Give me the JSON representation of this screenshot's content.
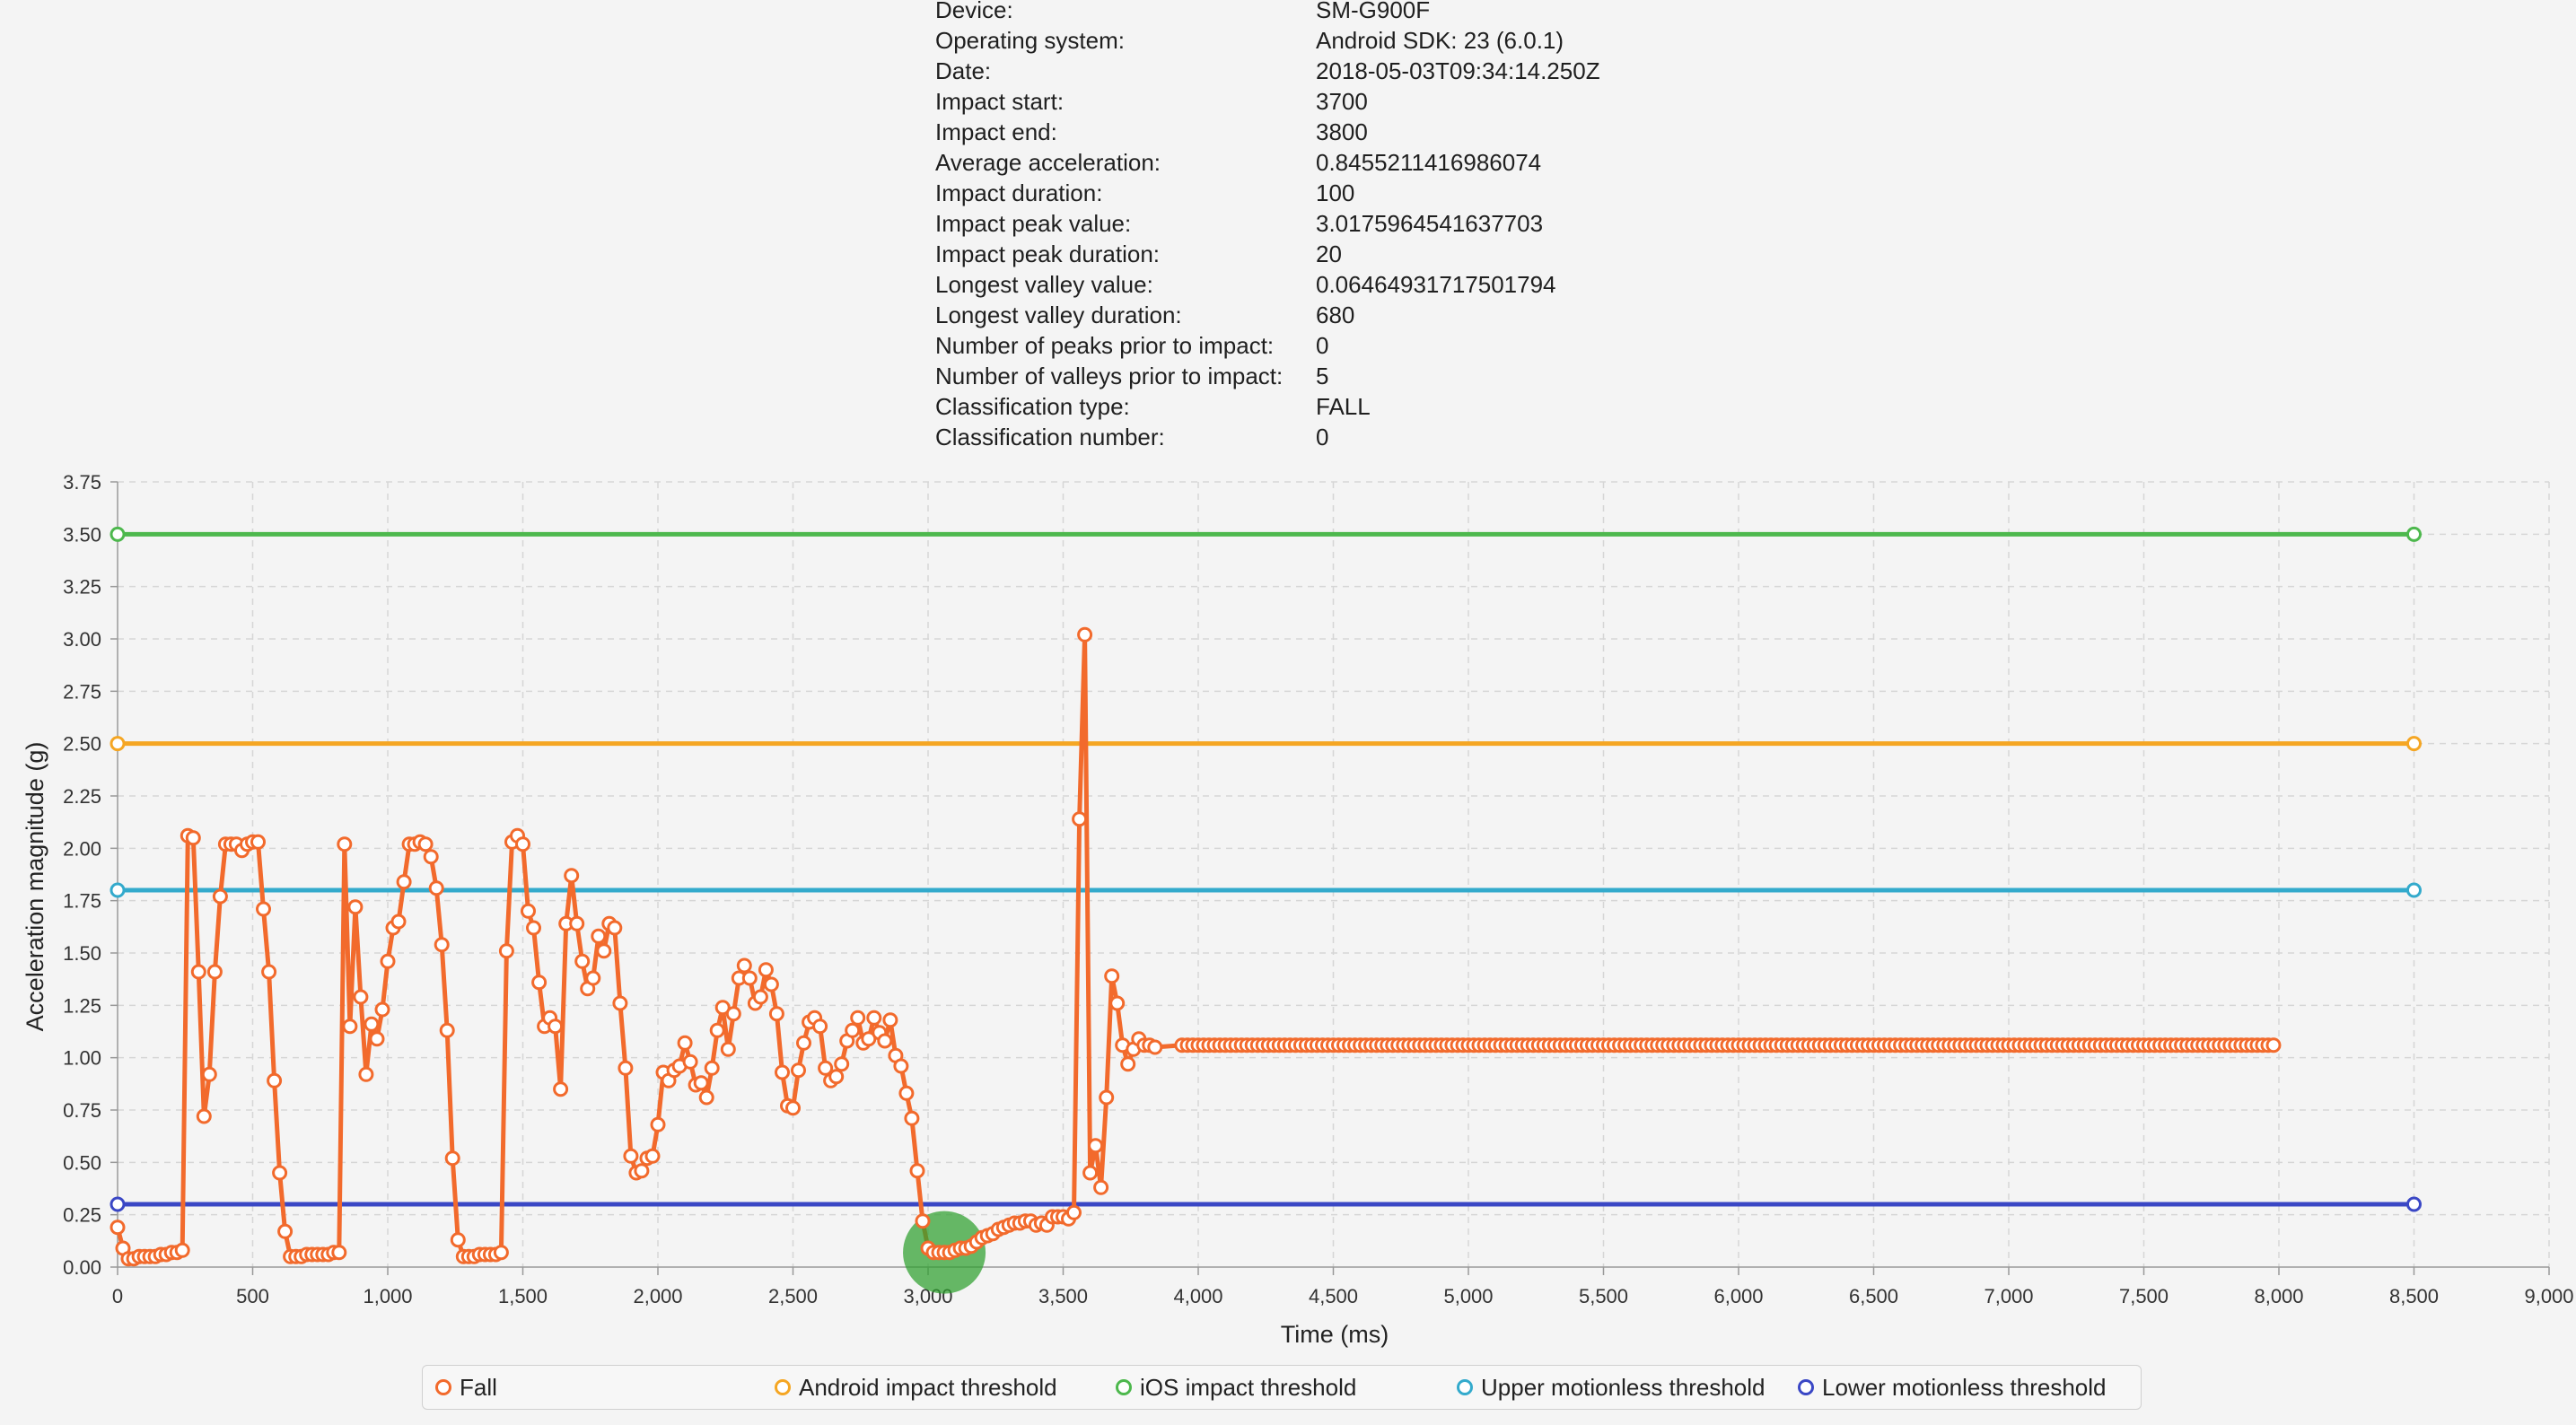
{
  "info": [
    {
      "label": "Device:",
      "value": "SM-G900F"
    },
    {
      "label": "Operating system:",
      "value": "Android SDK: 23 (6.0.1)"
    },
    {
      "label": "Date:",
      "value": "2018-05-03T09:34:14.250Z"
    },
    {
      "label": "Impact start:",
      "value": "3700"
    },
    {
      "label": "Impact end:",
      "value": "3800"
    },
    {
      "label": "Average acceleration:",
      "value": "0.8455211416986074"
    },
    {
      "label": "Impact duration:",
      "value": "100"
    },
    {
      "label": "Impact peak value:",
      "value": "3.0175964541637703"
    },
    {
      "label": "Impact peak duration:",
      "value": "20"
    },
    {
      "label": "Longest valley value:",
      "value": "0.06464931717501794"
    },
    {
      "label": "Longest valley duration:",
      "value": "680"
    },
    {
      "label": "Number of peaks prior to impact:",
      "value": "0"
    },
    {
      "label": "Number of valleys prior to impact:",
      "value": "5"
    },
    {
      "label": "Classification type:",
      "value": "FALL"
    },
    {
      "label": "Classification number:",
      "value": "0"
    }
  ],
  "chart_data": {
    "type": "line",
    "xlabel": "Time (ms)",
    "ylabel": "Acceleration magnitude (g)",
    "xlim": [
      0,
      9000
    ],
    "ylim": [
      0,
      3.75
    ],
    "x_ticks": [
      0,
      500,
      1000,
      1500,
      2000,
      2500,
      3000,
      3500,
      4000,
      4500,
      5000,
      5500,
      6000,
      6500,
      7000,
      7500,
      8000,
      8500,
      9000
    ],
    "x_tick_labels": [
      "0",
      "500",
      "1,000",
      "1,500",
      "2,000",
      "2,500",
      "3,000",
      "3,500",
      "4,000",
      "4,500",
      "5,000",
      "5,500",
      "6,000",
      "6,500",
      "7,000",
      "7,500",
      "8,000",
      "8,500",
      "9,000"
    ],
    "y_ticks": [
      0,
      0.25,
      0.5,
      0.75,
      1.0,
      1.25,
      1.5,
      1.75,
      2.0,
      2.25,
      2.5,
      2.75,
      3.0,
      3.25,
      3.5,
      3.75
    ],
    "y_tick_labels": [
      "0.00",
      "0.25",
      "0.50",
      "0.75",
      "1.00",
      "1.25",
      "1.50",
      "1.75",
      "2.00",
      "2.25",
      "2.50",
      "2.75",
      "3.00",
      "3.25",
      "3.50",
      "3.75"
    ],
    "grid": true,
    "legend_position": "bottom",
    "highlight": {
      "x": 3060,
      "y": 0.07,
      "color": "#2ea02e"
    },
    "series": [
      {
        "name": "Fall",
        "color": "#f26a2c",
        "x_step": 20,
        "x_start": 0,
        "values": [
          0.19,
          0.09,
          0.04,
          0.04,
          0.05,
          0.05,
          0.05,
          0.05,
          0.06,
          0.06,
          0.07,
          0.07,
          0.08,
          2.06,
          2.05,
          1.41,
          0.72,
          0.92,
          1.41,
          1.77,
          2.02,
          2.02,
          2.02,
          1.99,
          2.02,
          2.03,
          2.03,
          1.71,
          1.41,
          0.89,
          0.45,
          0.17,
          0.05,
          0.05,
          0.05,
          0.06,
          0.06,
          0.06,
          0.06,
          0.06,
          0.07,
          0.07,
          2.02,
          1.15,
          1.72,
          1.29,
          0.92,
          1.16,
          1.09,
          1.23,
          1.46,
          1.62,
          1.65,
          1.84,
          2.02,
          2.02,
          2.03,
          2.02,
          1.96,
          1.81,
          1.54,
          1.13,
          0.52,
          0.13,
          0.05,
          0.05,
          0.05,
          0.06,
          0.06,
          0.06,
          0.06,
          0.07,
          1.51,
          2.03,
          2.06,
          2.02,
          1.7,
          1.62,
          1.36,
          1.15,
          1.19,
          1.15,
          0.85,
          1.64,
          1.87,
          1.64,
          1.46,
          1.33,
          1.38,
          1.58,
          1.51,
          1.64,
          1.62,
          1.26,
          0.95,
          0.53,
          0.45,
          0.46,
          0.52,
          0.53,
          0.68,
          0.93,
          0.89,
          0.94,
          0.96,
          1.07,
          0.98,
          0.87,
          0.88,
          0.81,
          0.95,
          1.13,
          1.24,
          1.04,
          1.21,
          1.38,
          1.44,
          1.38,
          1.26,
          1.29,
          1.42,
          1.35,
          1.21,
          0.93,
          0.77,
          0.76,
          0.94,
          1.07,
          1.17,
          1.19,
          1.15,
          0.95,
          0.89,
          0.91,
          0.97,
          1.08,
          1.13,
          1.19,
          1.07,
          1.09,
          1.19,
          1.12,
          1.08,
          1.18,
          1.01,
          0.96,
          0.83,
          0.71,
          0.46,
          0.22,
          0.09,
          0.07,
          0.07,
          0.07,
          0.07,
          0.08,
          0.09,
          0.09,
          0.1,
          0.12,
          0.14,
          0.15,
          0.16,
          0.18,
          0.19,
          0.2,
          0.21,
          0.21,
          0.22,
          0.22,
          0.2,
          0.21,
          0.2,
          0.24,
          0.24,
          0.24,
          0.23,
          0.26,
          2.14,
          3.02,
          0.45,
          0.58,
          0.38,
          0.81,
          1.39,
          1.26,
          1.06,
          0.97,
          1.04,
          1.09,
          1.06,
          1.06,
          1.05
        ],
        "tail_from": 3940,
        "tail_to": 7980,
        "tail_value": 1.06
      },
      {
        "name": "Android impact threshold",
        "color": "#f5a623",
        "x": [
          0,
          8500
        ],
        "values": [
          2.5,
          2.5
        ]
      },
      {
        "name": "iOS impact threshold",
        "color": "#4db84d",
        "x": [
          0,
          8500
        ],
        "values": [
          3.5,
          3.5
        ]
      },
      {
        "name": "Upper motionless threshold",
        "color": "#33aacc",
        "x": [
          0,
          8500
        ],
        "values": [
          1.8,
          1.8
        ]
      },
      {
        "name": "Lower motionless threshold",
        "color": "#3a47c5",
        "x": [
          0,
          8500
        ],
        "values": [
          0.3,
          0.3
        ]
      }
    ]
  }
}
